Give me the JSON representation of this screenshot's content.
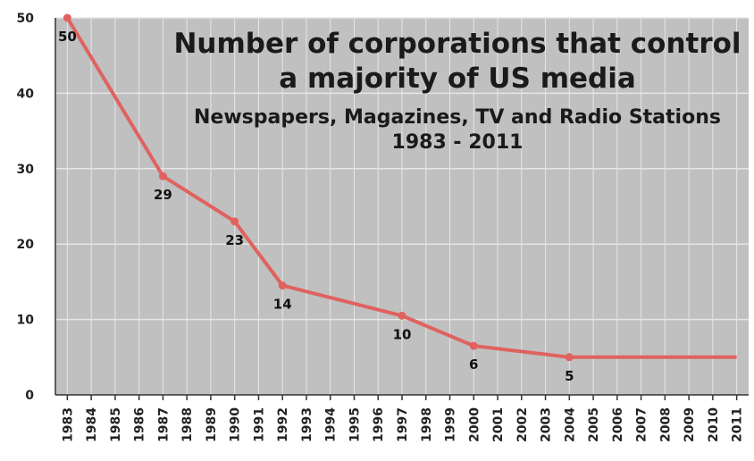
{
  "chart_data": {
    "type": "line",
    "title": "Number of corporations that control",
    "title_line2": "a majority of US media",
    "subtitle": "Newspapers, Magazines, TV and Radio Stations",
    "subtitle_line2": "1983 - 2011",
    "xlabel": "",
    "ylabel": "",
    "ylim": [
      0,
      50
    ],
    "yticks": [
      "0",
      "10",
      "20",
      "30",
      "40",
      "50"
    ],
    "categories": [
      "1983",
      "1984",
      "1985",
      "1986",
      "1987",
      "1988",
      "1989",
      "1990",
      "1991",
      "1992",
      "1993",
      "1994",
      "1995",
      "1996",
      "1997",
      "1998",
      "1999",
      "2000",
      "2001",
      "2002",
      "2003",
      "2004",
      "2005",
      "2006",
      "2007",
      "2008",
      "2009",
      "2010",
      "2011"
    ],
    "series": [
      {
        "points": [
          {
            "x": "1983",
            "y": 50,
            "label": "50"
          },
          {
            "x": "1987",
            "y": 29,
            "label": "29"
          },
          {
            "x": "1990",
            "y": 23,
            "label": "23"
          },
          {
            "x": "1992",
            "y": 14.5,
            "label": "14"
          },
          {
            "x": "1997",
            "y": 10.5,
            "label": "10"
          },
          {
            "x": "2000",
            "y": 6.5,
            "label": "6"
          },
          {
            "x": "2004",
            "y": 5,
            "label": "5"
          },
          {
            "x": "2011",
            "y": 5,
            "label": ""
          }
        ]
      }
    ],
    "grid": true,
    "colors": {
      "plot_background": "#c0c0c0",
      "line": "#e0625f",
      "grid": "#e6e6e6"
    }
  }
}
